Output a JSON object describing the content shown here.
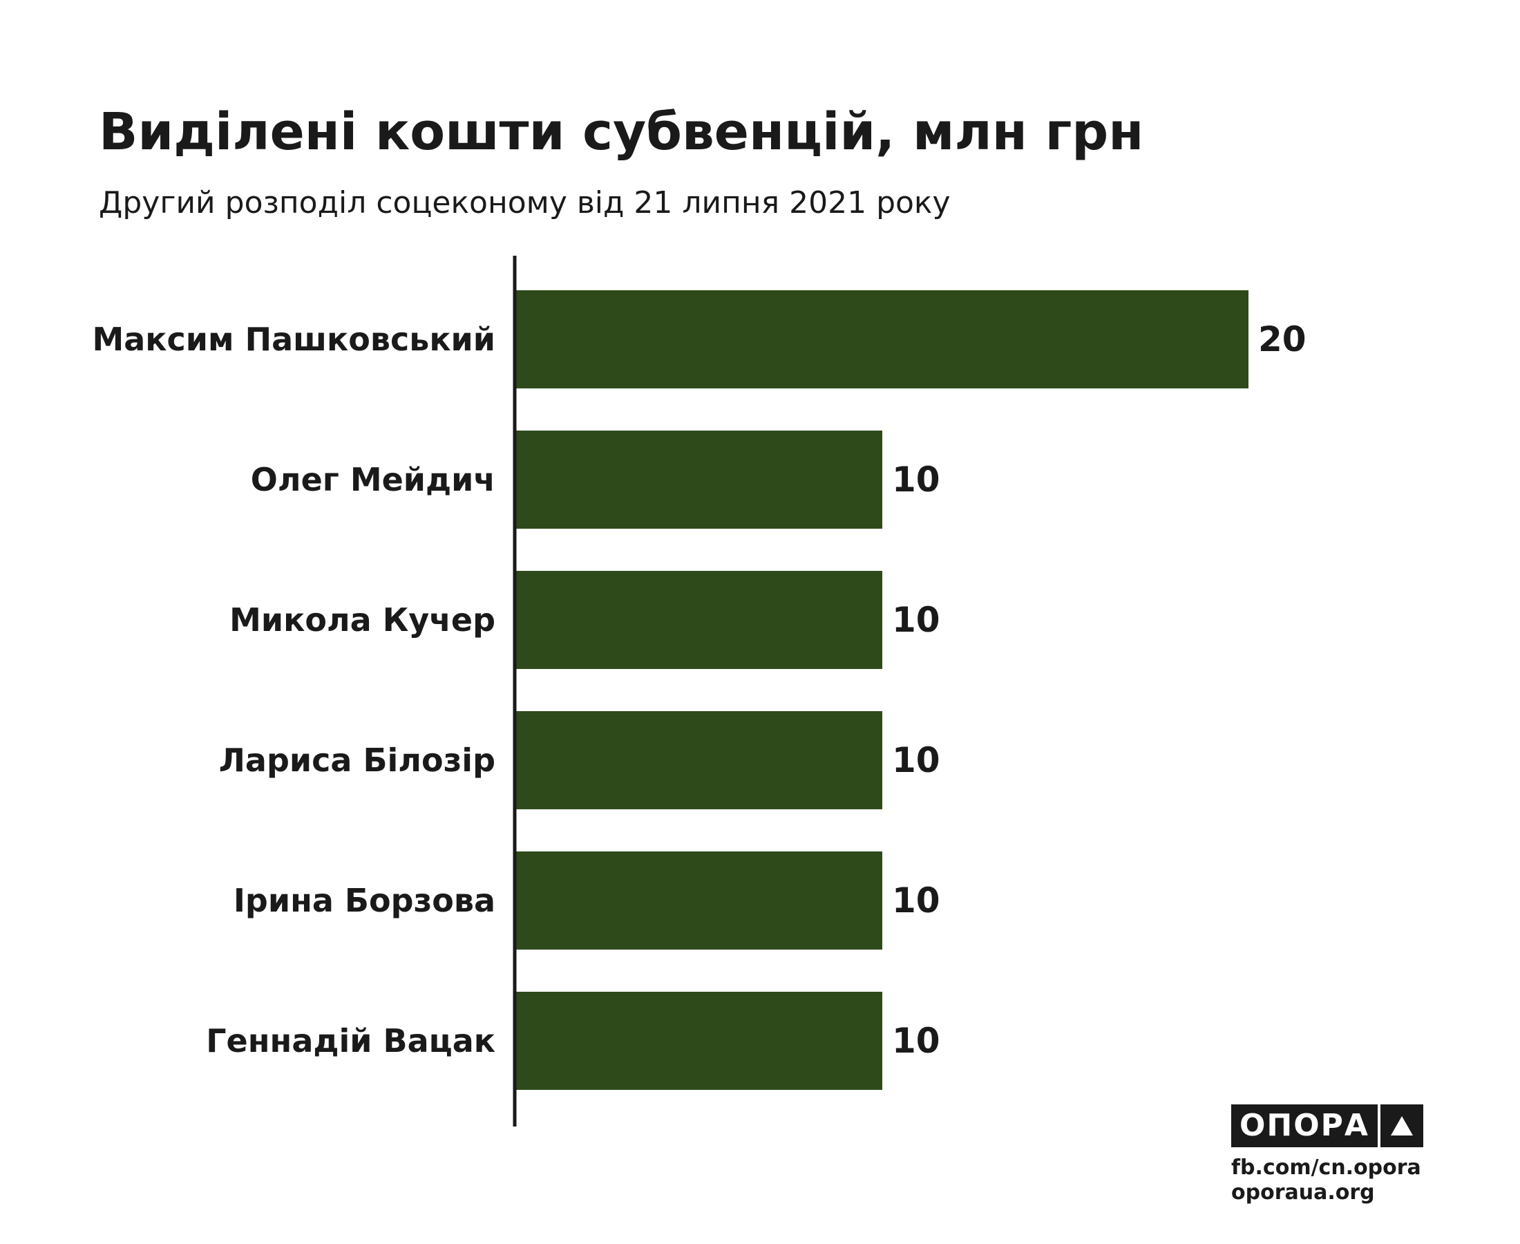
{
  "header": {
    "title": "Виділені кошти субвенцій, млн грн",
    "subtitle": "Другий розподіл соцеконому від 21 липня 2021 року"
  },
  "chart_data": {
    "type": "bar",
    "orientation": "horizontal",
    "categories": [
      "Максим Пашковський",
      "Олег Мейдич",
      "Микола Кучер",
      "Лариса Білозір",
      "Ірина Борзова",
      "Геннадій Вацак"
    ],
    "values": [
      20,
      10,
      10,
      10,
      10,
      10
    ],
    "value_labels": [
      "20",
      "10",
      "10",
      "10",
      "10",
      "10"
    ],
    "xlim": [
      0,
      20
    ],
    "bar_color": "#2e4a1b",
    "axis_color": "#1a1a1a",
    "grid": false,
    "legend": "none"
  },
  "footer": {
    "logo_text": "ОПОРА",
    "logo_icon": "triangle-up-icon",
    "link_fb": "fb.com/cn.opora",
    "link_site": "oporaua.org"
  }
}
